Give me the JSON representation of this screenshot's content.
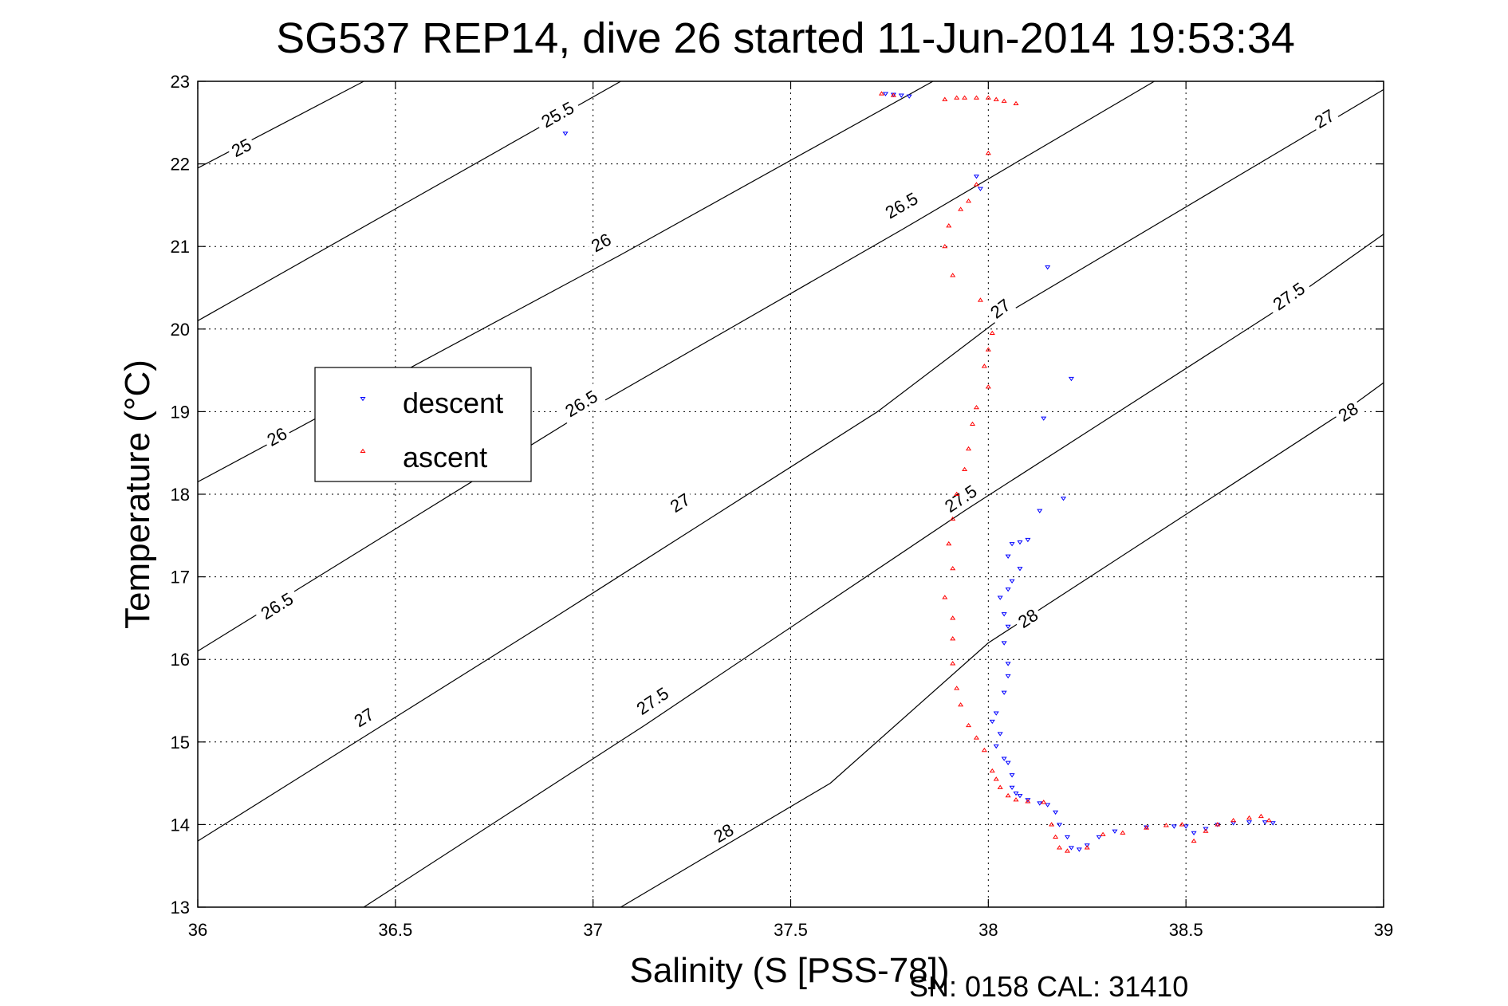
{
  "chart_data": {
    "type": "scatter",
    "title": "SG537 REP14, dive 26 started 11-Jun-2014 19:53:34",
    "xlabel": "Salinity (S [PSS-78])",
    "ylabel": "Temperature (°C)",
    "xlim": [
      36,
      39
    ],
    "ylim": [
      13,
      23
    ],
    "xticks": [
      36,
      36.5,
      37,
      37.5,
      38,
      38.5,
      39
    ],
    "xtick_labels": [
      "36",
      "36.5",
      "37",
      "37.5",
      "38",
      "38.5",
      "39"
    ],
    "yticks": [
      13,
      14,
      15,
      16,
      17,
      18,
      19,
      20,
      21,
      22,
      23
    ],
    "ytick_labels": [
      "13",
      "14",
      "15",
      "16",
      "17",
      "18",
      "19",
      "20",
      "21",
      "22",
      "23"
    ],
    "grid": true,
    "legend_position": "left-middle",
    "footer": "SN: 0158  CAL: 31410",
    "colors": {
      "descent": "#0000ff",
      "ascent": "#ff0000",
      "axes": "#000000"
    },
    "contours": [
      {
        "pts": [
          [
            36,
            21.95
          ],
          [
            36.42,
            23
          ]
        ],
        "labels": [
          {
            "text": "25",
            "x": 36.11,
            "y": 22.2
          }
        ]
      },
      {
        "pts": [
          [
            36,
            20.1
          ],
          [
            37.07,
            23
          ]
        ],
        "labels": [
          {
            "text": "25.5",
            "x": 36.91,
            "y": 22.6
          }
        ]
      },
      {
        "pts": [
          [
            36,
            18.15
          ],
          [
            37.07,
            20.9
          ],
          [
            37.86,
            23
          ]
        ],
        "labels": [
          {
            "text": "26",
            "x": 36.2,
            "y": 18.7
          },
          {
            "text": "26",
            "x": 37.02,
            "y": 21.05
          }
        ]
      },
      {
        "pts": [
          [
            36,
            16.1
          ],
          [
            36.98,
            19.0
          ],
          [
            37.78,
            21.2
          ],
          [
            38.42,
            23
          ]
        ],
        "labels": [
          {
            "text": "26.5",
            "x": 36.2,
            "y": 16.65
          },
          {
            "text": "26.5",
            "x": 36.97,
            "y": 19.1
          },
          {
            "text": "26.5",
            "x": 37.78,
            "y": 21.5
          }
        ]
      },
      {
        "pts": [
          [
            36,
            13.8
          ],
          [
            36.9,
            16.5
          ],
          [
            37.72,
            19.0
          ],
          [
            38.05,
            20.2
          ],
          [
            39,
            22.9
          ]
        ],
        "labels": [
          {
            "text": "27",
            "x": 36.42,
            "y": 15.3
          },
          {
            "text": "27",
            "x": 37.22,
            "y": 17.9
          },
          {
            "text": "27",
            "x": 38.03,
            "y": 20.25
          },
          {
            "text": "27",
            "x": 38.85,
            "y": 22.55
          }
        ]
      },
      {
        "pts": [
          [
            36.42,
            13
          ],
          [
            37.13,
            15.2
          ],
          [
            37.94,
            17.8
          ],
          [
            38.72,
            20.2
          ],
          [
            39,
            21.15
          ]
        ],
        "labels": [
          {
            "text": "27.5",
            "x": 37.15,
            "y": 15.5
          },
          {
            "text": "27.5",
            "x": 37.93,
            "y": 17.95
          },
          {
            "text": "27.5",
            "x": 38.76,
            "y": 20.4
          }
        ]
      },
      {
        "pts": [
          [
            37.07,
            13
          ],
          [
            37.6,
            14.5
          ],
          [
            38.0,
            16.2
          ],
          [
            38.9,
            19.0
          ],
          [
            39,
            19.35
          ]
        ],
        "labels": [
          {
            "text": "28",
            "x": 37.33,
            "y": 13.9
          },
          {
            "text": "28",
            "x": 38.1,
            "y": 16.5
          },
          {
            "text": "28",
            "x": 38.91,
            "y": 19.0
          }
        ]
      }
    ],
    "series": [
      {
        "name": "descent",
        "marker": "triangle-down",
        "points": [
          [
            37.74,
            22.85
          ],
          [
            37.76,
            22.84
          ],
          [
            37.78,
            22.83
          ],
          [
            37.8,
            22.82
          ],
          [
            36.93,
            22.37
          ],
          [
            37.97,
            21.85
          ],
          [
            37.98,
            21.7
          ],
          [
            38.15,
            20.75
          ],
          [
            38.21,
            19.4
          ],
          [
            38.14,
            18.92
          ],
          [
            38.19,
            17.95
          ],
          [
            38.13,
            17.8
          ],
          [
            38.1,
            17.45
          ],
          [
            38.08,
            17.42
          ],
          [
            38.06,
            17.4
          ],
          [
            38.05,
            17.25
          ],
          [
            38.08,
            17.1
          ],
          [
            38.06,
            16.95
          ],
          [
            38.05,
            16.85
          ],
          [
            38.03,
            16.75
          ],
          [
            38.04,
            16.55
          ],
          [
            38.05,
            16.4
          ],
          [
            38.04,
            16.2
          ],
          [
            38.05,
            15.95
          ],
          [
            38.05,
            15.8
          ],
          [
            38.04,
            15.6
          ],
          [
            38.02,
            15.35
          ],
          [
            38.01,
            15.25
          ],
          [
            38.03,
            15.1
          ],
          [
            38.02,
            14.95
          ],
          [
            38.04,
            14.8
          ],
          [
            38.05,
            14.75
          ],
          [
            38.06,
            14.6
          ],
          [
            38.06,
            14.45
          ],
          [
            38.07,
            14.38
          ],
          [
            38.08,
            14.35
          ],
          [
            38.1,
            14.3
          ],
          [
            38.13,
            14.26
          ],
          [
            38.15,
            14.24
          ],
          [
            38.17,
            14.15
          ],
          [
            38.18,
            14.0
          ],
          [
            38.2,
            13.85
          ],
          [
            38.21,
            13.72
          ],
          [
            38.23,
            13.7
          ],
          [
            38.25,
            13.75
          ],
          [
            38.28,
            13.85
          ],
          [
            38.32,
            13.92
          ],
          [
            38.4,
            13.97
          ],
          [
            38.47,
            13.98
          ],
          [
            38.5,
            13.98
          ],
          [
            38.52,
            13.9
          ],
          [
            38.55,
            13.95
          ],
          [
            38.58,
            14.0
          ],
          [
            38.62,
            14.02
          ],
          [
            38.66,
            14.03
          ],
          [
            38.7,
            14.03
          ],
          [
            38.72,
            14.02
          ]
        ]
      },
      {
        "name": "ascent",
        "marker": "triangle-up",
        "points": [
          [
            37.73,
            22.85
          ],
          [
            37.76,
            22.83
          ],
          [
            37.89,
            22.78
          ],
          [
            37.92,
            22.8
          ],
          [
            37.94,
            22.8
          ],
          [
            37.97,
            22.8
          ],
          [
            38.0,
            22.8
          ],
          [
            38.02,
            22.78
          ],
          [
            38.04,
            22.76
          ],
          [
            38.07,
            22.73
          ],
          [
            38.0,
            22.13
          ],
          [
            37.97,
            21.75
          ],
          [
            37.95,
            21.55
          ],
          [
            37.93,
            21.45
          ],
          [
            37.9,
            21.25
          ],
          [
            37.89,
            21.0
          ],
          [
            37.91,
            20.65
          ],
          [
            37.98,
            20.35
          ],
          [
            38.01,
            19.95
          ],
          [
            38.0,
            19.75
          ],
          [
            37.99,
            19.55
          ],
          [
            38.0,
            19.3
          ],
          [
            37.97,
            19.05
          ],
          [
            37.96,
            18.85
          ],
          [
            37.95,
            18.55
          ],
          [
            37.94,
            18.3
          ],
          [
            37.92,
            18.0
          ],
          [
            37.91,
            17.7
          ],
          [
            37.9,
            17.4
          ],
          [
            37.91,
            17.1
          ],
          [
            37.89,
            16.75
          ],
          [
            37.91,
            16.5
          ],
          [
            37.91,
            16.25
          ],
          [
            37.91,
            15.95
          ],
          [
            37.92,
            15.65
          ],
          [
            37.93,
            15.45
          ],
          [
            37.95,
            15.2
          ],
          [
            37.97,
            15.05
          ],
          [
            37.99,
            14.9
          ],
          [
            38.01,
            14.65
          ],
          [
            38.02,
            14.55
          ],
          [
            38.03,
            14.45
          ],
          [
            38.05,
            14.35
          ],
          [
            38.07,
            14.3
          ],
          [
            38.1,
            14.28
          ],
          [
            38.14,
            14.27
          ],
          [
            38.16,
            14.0
          ],
          [
            38.17,
            13.85
          ],
          [
            38.18,
            13.72
          ],
          [
            38.2,
            13.68
          ],
          [
            38.25,
            13.72
          ],
          [
            38.29,
            13.88
          ],
          [
            38.34,
            13.9
          ],
          [
            38.4,
            13.96
          ],
          [
            38.45,
            13.99
          ],
          [
            38.49,
            14.0
          ],
          [
            38.52,
            13.8
          ],
          [
            38.55,
            13.92
          ],
          [
            38.58,
            14.0
          ],
          [
            38.62,
            14.05
          ],
          [
            38.66,
            14.08
          ],
          [
            38.69,
            14.1
          ],
          [
            38.71,
            14.05
          ]
        ]
      }
    ]
  }
}
